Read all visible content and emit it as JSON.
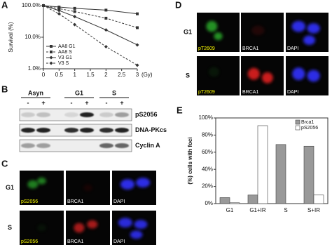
{
  "panels": {
    "a": "A",
    "b": "B",
    "c": "C",
    "d": "D",
    "e": "E"
  },
  "chart_data": [
    {
      "type": "line",
      "y_label": "Survival (%)",
      "x_unit": "(Gy)",
      "x": [
        0,
        0.5,
        1,
        2,
        3
      ],
      "log_y": true,
      "ylim": [
        1,
        100
      ],
      "yticks": [
        {
          "value": 100,
          "label": "100.0%"
        },
        {
          "value": 10,
          "label": "10.0%"
        },
        {
          "value": 1,
          "label": "1.0%"
        }
      ],
      "xlim": [
        0,
        3
      ],
      "xticks": [
        0,
        0.5,
        1,
        1.5,
        2,
        2.5,
        3
      ],
      "series": [
        {
          "name": "AA8 G1",
          "color": "#333333",
          "dashed": false,
          "marker": "square",
          "values": [
            100,
            90,
            82,
            72,
            55
          ]
        },
        {
          "name": "AA8 S",
          "color": "#333333",
          "dashed": true,
          "marker": "square",
          "values": [
            100,
            80,
            65,
            40,
            20
          ]
        },
        {
          "name": "V3 G1",
          "color": "#333333",
          "dashed": false,
          "marker": "diamond",
          "values": [
            100,
            70,
            45,
            17,
            5.7
          ]
        },
        {
          "name": "V3 S",
          "color": "#333333",
          "dashed": true,
          "marker": "diamond",
          "values": [
            100,
            55,
            25,
            5,
            1.3
          ]
        }
      ]
    },
    {
      "type": "bar",
      "y_label": "(%) cells with foci",
      "categories": [
        "G1",
        "G1+IR",
        "S",
        "S+IR"
      ],
      "ylim": [
        0,
        100
      ],
      "yticks": [
        {
          "value": 0,
          "label": "0%"
        },
        {
          "value": 20,
          "label": "20%"
        },
        {
          "value": 40,
          "label": "40%"
        },
        {
          "value": 60,
          "label": "60%"
        },
        {
          "value": 80,
          "label": "80%"
        },
        {
          "value": 100,
          "label": "100%"
        }
      ],
      "series": [
        {
          "name": "Brca1",
          "color": "#999999",
          "values": [
            7,
            10,
            69,
            67
          ]
        },
        {
          "name": "pS2056",
          "color": "#ffffff",
          "values": [
            1,
            91,
            0,
            10
          ]
        }
      ]
    }
  ],
  "blot": {
    "groups": [
      "Asyn",
      "G1",
      "S"
    ],
    "treatments": [
      "-",
      "+",
      "-",
      "+",
      "-",
      "+"
    ],
    "bands": [
      "pS2056",
      "DNA-PKcs",
      "Cyclin A"
    ]
  },
  "panel_c": {
    "rows": [
      "G1",
      "S"
    ],
    "stains": [
      "pS2056",
      "BRCA1",
      "DAPI"
    ]
  },
  "panel_d": {
    "rows": [
      "G1",
      "S"
    ],
    "stains": [
      "pT2609",
      "BRCA1",
      "DAPI"
    ]
  }
}
